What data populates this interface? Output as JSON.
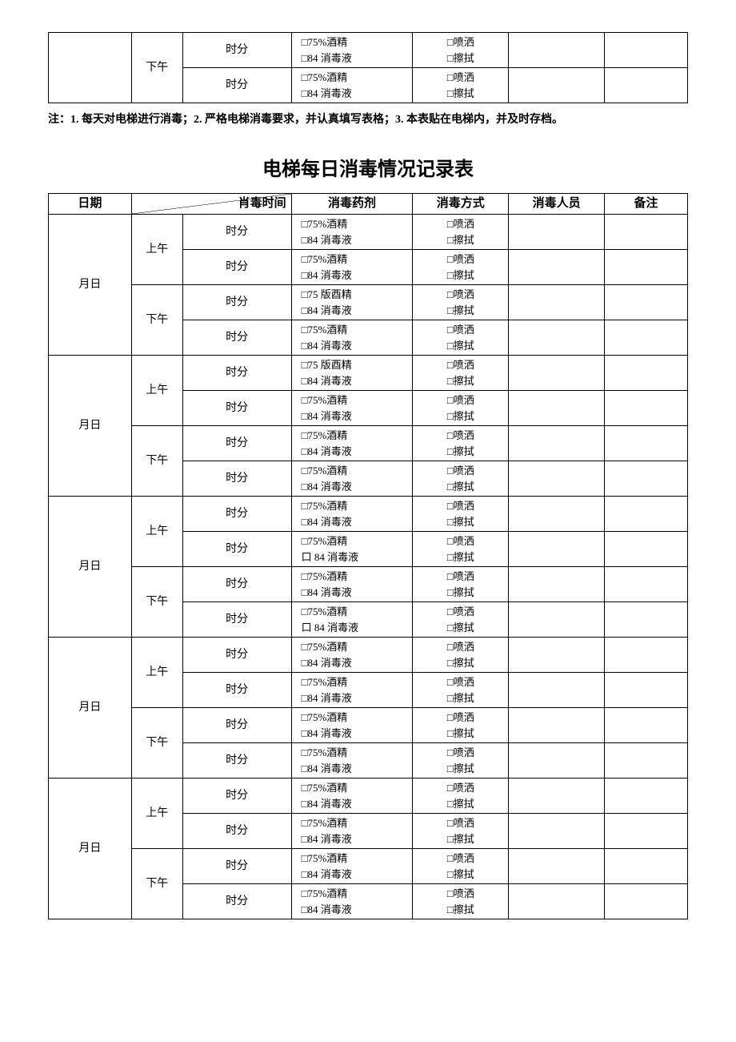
{
  "topFragment": {
    "period": "下午",
    "rows": [
      {
        "time": "时分",
        "agent1": "□75%酒精",
        "agent2": "□84 消毒液",
        "method1": "□喷洒",
        "method2": "□擦拭"
      },
      {
        "time": "时分",
        "agent1": "□75%酒精",
        "agent2": "□84 消毒液",
        "method1": "□喷洒",
        "method2": "□擦拭"
      }
    ]
  },
  "note": "注：1. 每天对电梯进行消毒；2. 严格电梯消毒要求，并认真填写表格；3. 本表贴在电梯内，并及时存档。",
  "title": "电梯每日消毒情况记录表",
  "headers": {
    "date": "日期",
    "time": "肖毒时间",
    "agent": "消毒药剂",
    "method": "消毒方式",
    "person": "消毒人员",
    "remark": "备注"
  },
  "dateLabel": "月日",
  "periods": {
    "am": "上午",
    "pm": "下午"
  },
  "days": [
    {
      "blocks": [
        {
          "period": "上午",
          "rows": [
            {
              "time": "时分",
              "agent1": "□75%酒精",
              "agent2": "□84 消毒液",
              "method1": "□喷洒",
              "method2": "□擦拭"
            },
            {
              "time": "时分",
              "agent1": "□75%酒精",
              "agent2": "□84 消毒液",
              "method1": "□喷洒",
              "method2": "□擦拭"
            }
          ]
        },
        {
          "period": "下午",
          "rows": [
            {
              "time": "时分",
              "agent1": "□75 版酉精",
              "agent2": "□84 消毒液",
              "method1": "□喷洒",
              "method2": "□擦拭"
            },
            {
              "time": "时分",
              "agent1": "□75%酒精",
              "agent2": "□84 消毒液",
              "method1": "□喷洒",
              "method2": "□擦拭"
            }
          ]
        }
      ]
    },
    {
      "blocks": [
        {
          "period": "上午",
          "rows": [
            {
              "time": "时分",
              "agent1": "□75 版酉精",
              "agent2": "□84 消毒液",
              "method1": "□喷洒",
              "method2": "□擦拭"
            },
            {
              "time": "时分",
              "agent1": "□75%酒精",
              "agent2": "□84 消毒液",
              "method1": "□喷洒",
              "method2": "□擦拭"
            }
          ]
        },
        {
          "period": "下午",
          "rows": [
            {
              "time": "时分",
              "agent1": "□75%酒精",
              "agent2": "□84 消毒液",
              "method1": "□喷洒",
              "method2": "□擦拭"
            },
            {
              "time": "时分",
              "agent1": "□75%酒精",
              "agent2": "□84 消毒液",
              "method1": "□喷洒",
              "method2": "□擦拭"
            }
          ]
        }
      ]
    },
    {
      "blocks": [
        {
          "period": "上午",
          "rows": [
            {
              "time": "时分",
              "agent1": "□75%酒精",
              "agent2": "□84 消毒液",
              "method1": "□喷洒",
              "method2": "□擦拭"
            },
            {
              "time": "时分",
              "agent1": "□75%酒精",
              "agent2": "口 84 消毒液",
              "method1": "□喷洒",
              "method2": "□擦拭"
            }
          ]
        },
        {
          "period": "下午",
          "rows": [
            {
              "time": "时分",
              "agent1": "□75%酒精",
              "agent2": "□84 消毒液",
              "method1": "□喷洒",
              "method2": "□擦拭"
            },
            {
              "time": "时分",
              "agent1": "□75%酒精",
              "agent2": "口 84 消毒液",
              "method1": "□喷洒",
              "method2": "□擦拭"
            }
          ]
        }
      ]
    },
    {
      "blocks": [
        {
          "period": "上午",
          "rows": [
            {
              "time": "时分",
              "agent1": "□75%酒精",
              "agent2": "□84 消毒液",
              "method1": "□喷洒",
              "method2": "□擦拭"
            },
            {
              "time": "时分",
              "agent1": "□75%酒精",
              "agent2": "□84 消毒液",
              "method1": "□喷洒",
              "method2": "□擦拭"
            }
          ]
        },
        {
          "period": "下午",
          "rows": [
            {
              "time": "时分",
              "agent1": "□75%酒精",
              "agent2": "□84 消毒液",
              "method1": "□喷洒",
              "method2": "□擦拭"
            },
            {
              "time": "时分",
              "agent1": "□75%酒精",
              "agent2": "□84 消毒液",
              "method1": "□喷洒",
              "method2": "□擦拭"
            }
          ]
        }
      ]
    },
    {
      "blocks": [
        {
          "period": "上午",
          "rows": [
            {
              "time": "时分",
              "agent1": "□75%酒精",
              "agent2": "□84 消毒液",
              "method1": "□喷洒",
              "method2": "□擦拭"
            },
            {
              "time": "时分",
              "agent1": "□75%酒精",
              "agent2": "□84 消毒液",
              "method1": "□喷洒",
              "method2": "□擦拭"
            }
          ]
        },
        {
          "period": "下午",
          "rows": [
            {
              "time": "时分",
              "agent1": "□75%酒精",
              "agent2": "□84 消毒液",
              "method1": "□喷洒",
              "method2": "□擦拭"
            },
            {
              "time": "时分",
              "agent1": "□75%酒精",
              "agent2": "□84 消毒液",
              "method1": "□喷洒",
              "method2": "□擦拭"
            }
          ]
        }
      ]
    }
  ]
}
